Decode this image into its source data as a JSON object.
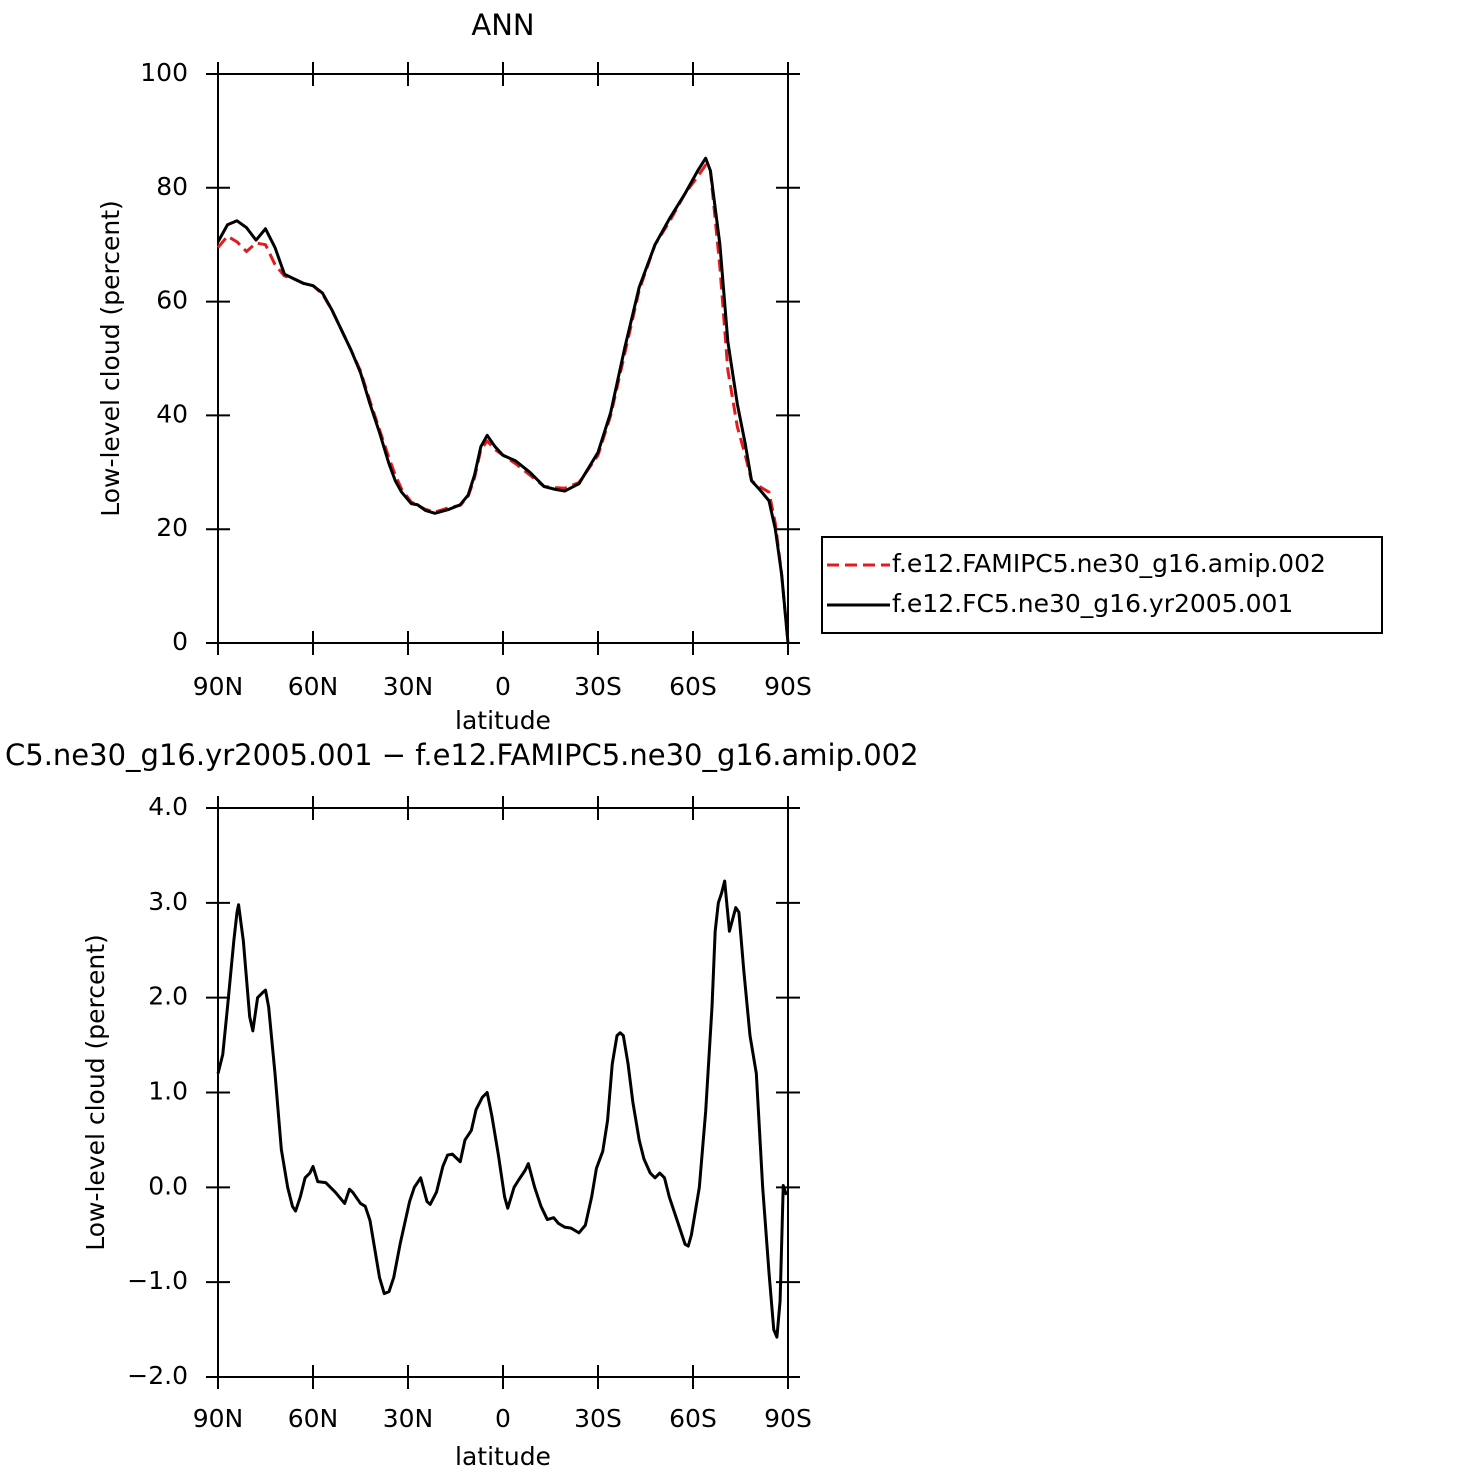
{
  "chart_data": [
    {
      "type": "line",
      "title": "ANN",
      "xlabel": "latitude",
      "ylabel": "Low-level cloud (percent)",
      "x": [
        90,
        87,
        84,
        81,
        78,
        75,
        72,
        69,
        66,
        63,
        60,
        57,
        54,
        51,
        48,
        45,
        42,
        39,
        36,
        34,
        32,
        29,
        27,
        24.5,
        21.5,
        17,
        13.5,
        11,
        9,
        7,
        5,
        2.5,
        0,
        -4,
        -8.5,
        -13,
        -16.5,
        -19.5,
        -24,
        -30,
        -34,
        -38.5,
        -43,
        -48,
        -52.5,
        -57.5,
        -61.5,
        -64,
        -65.5,
        -68.5,
        -71,
        -74,
        -76.5,
        -78.5,
        -81,
        -84,
        -86,
        -88,
        -90
      ],
      "series": [
        {
          "name": "f.e12.FAMIPC5.ne30_g16.amip.002",
          "color": "#e41a1c",
          "linestyle": "dashed",
          "values": [
            69.5,
            71.5,
            70.5,
            68.8,
            70.3,
            70,
            66.5,
            64.5,
            64,
            63.2,
            62.8,
            61.3,
            58.5,
            55,
            51.5,
            47.8,
            42.5,
            37.5,
            32.5,
            29.5,
            27,
            24.8,
            24.2,
            23.5,
            23,
            23.8,
            24.2,
            25.8,
            29,
            34,
            35.5,
            34,
            33,
            31.5,
            29.5,
            27.5,
            27.3,
            27.2,
            28.2,
            33,
            40,
            51,
            62,
            70,
            74,
            79,
            82,
            84,
            83,
            66,
            48,
            38,
            33,
            28.5,
            27.5,
            26.5,
            21,
            12,
            0
          ]
        },
        {
          "name": "f.e12.FC5.ne30_g16.yr2005.001",
          "color": "#000000",
          "linestyle": "solid",
          "values": [
            70.5,
            73.5,
            74.2,
            73,
            70.8,
            72.8,
            69.5,
            64.8,
            64,
            63.2,
            62.8,
            61.5,
            58.5,
            55,
            51.5,
            47.5,
            42,
            37,
            31.5,
            28.5,
            26.5,
            24.5,
            24.3,
            23.3,
            22.8,
            23.5,
            24.3,
            26,
            29.5,
            34.5,
            36.5,
            34.5,
            33,
            32,
            30,
            27.5,
            27,
            26.7,
            28,
            33.5,
            40.5,
            52,
            62.5,
            70,
            74.5,
            79,
            83,
            85.2,
            83,
            70,
            53,
            42,
            35,
            28.5,
            27,
            25,
            20,
            12,
            0
          ]
        }
      ],
      "xlim": [
        90,
        -90
      ],
      "xticks": [
        {
          "value": 90,
          "label": "90N"
        },
        {
          "value": 60,
          "label": "60N"
        },
        {
          "value": 30,
          "label": "30N"
        },
        0,
        {
          "value": -30,
          "label": "30S"
        },
        {
          "value": -60,
          "label": "60S"
        },
        {
          "value": -90,
          "label": "90S"
        }
      ],
      "ylim": [
        0,
        100
      ],
      "yticks": [
        0,
        20,
        40,
        60,
        80,
        100
      ],
      "legend": "right"
    },
    {
      "type": "line",
      "title": "C5.ne30_g16.yr2005.001 − f.e12.FAMIPC5.ne30_g16.amip.002",
      "xlabel": "latitude",
      "ylabel": "Low-level cloud (percent)",
      "x": [
        90,
        88.5,
        87,
        85,
        84,
        83.5,
        82,
        80,
        79,
        77.5,
        76,
        75,
        74,
        72,
        70,
        68,
        66.5,
        65.5,
        64,
        62.5,
        61,
        60,
        58.5,
        56,
        53,
        50,
        48.5,
        47.5,
        45,
        43.5,
        42,
        39,
        37.5,
        36,
        34.5,
        32.5,
        29.5,
        28,
        26,
        24,
        23,
        21,
        19,
        17.5,
        16,
        13.5,
        12,
        10,
        8.5,
        6.5,
        5,
        3.5,
        1.5,
        -0.5,
        -1.5,
        -3.5,
        -5,
        -7,
        -8,
        -10,
        -12,
        -14,
        -16,
        -17.5,
        -19.5,
        -21.5,
        -24,
        -26,
        -28,
        -29.5,
        -31.5,
        -33,
        -34.5,
        -36,
        -37,
        -38,
        -39.5,
        -41,
        -43,
        -44.5,
        -46.5,
        -48,
        -49.5,
        -51,
        -52.5,
        -55,
        -57.5,
        -58.5,
        -59.5,
        -62,
        -64,
        -66,
        -67,
        -68,
        -69,
        -70,
        -71.5,
        -73.5,
        -74.5,
        -76,
        -78,
        -80,
        -82,
        -84,
        -85.5,
        -86.5,
        -87.5,
        -88.5,
        -89.5
      ],
      "series": [
        {
          "color": "#000000",
          "linestyle": "solid",
          "values": [
            1.2,
            1.4,
            1.9,
            2.6,
            2.9,
            2.98,
            2.6,
            1.8,
            1.65,
            2.0,
            2.05,
            2.08,
            1.9,
            1.2,
            0.4,
            0.0,
            -0.2,
            -0.25,
            -0.1,
            0.1,
            0.15,
            0.22,
            0.06,
            0.05,
            -0.05,
            -0.17,
            -0.02,
            -0.05,
            -0.17,
            -0.2,
            -0.35,
            -0.95,
            -1.12,
            -1.1,
            -0.95,
            -0.6,
            -0.15,
            0.0,
            0.1,
            -0.15,
            -0.18,
            -0.05,
            0.22,
            0.34,
            0.35,
            0.27,
            0.5,
            0.6,
            0.82,
            0.95,
            1.0,
            0.75,
            0.35,
            -0.1,
            -0.22,
            0.0,
            0.08,
            0.18,
            0.25,
            0.0,
            -0.2,
            -0.34,
            -0.32,
            -0.38,
            -0.42,
            -0.43,
            -0.48,
            -0.4,
            -0.1,
            0.2,
            0.38,
            0.7,
            1.3,
            1.6,
            1.63,
            1.6,
            1.3,
            0.9,
            0.5,
            0.3,
            0.15,
            0.1,
            0.15,
            0.1,
            -0.1,
            -0.35,
            -0.6,
            -0.62,
            -0.5,
            0.0,
            0.8,
            1.9,
            2.7,
            3.0,
            3.1,
            3.23,
            2.7,
            2.95,
            2.9,
            2.3,
            1.6,
            1.2,
            0.0,
            -0.9,
            -1.5,
            -1.58,
            -1.2,
            0.02,
            -0.08
          ]
        }
      ],
      "xlim": [
        90,
        -90
      ],
      "xticks": [
        {
          "value": 90,
          "label": "90N"
        },
        {
          "value": 60,
          "label": "60N"
        },
        {
          "value": 30,
          "label": "30N"
        },
        0,
        {
          "value": -30,
          "label": "30S"
        },
        {
          "value": -60,
          "label": "60S"
        },
        {
          "value": -90,
          "label": "90S"
        }
      ],
      "ylim": [
        -2,
        4
      ],
      "yticks": [
        {
          "value": -2,
          "label": "−2.0"
        },
        {
          "value": -1,
          "label": "−1.0"
        },
        {
          "value": 0,
          "label": "0.0"
        },
        {
          "value": 1,
          "label": "1.0"
        },
        {
          "value": 2,
          "label": "2.0"
        },
        {
          "value": 3,
          "label": "3.0"
        },
        {
          "value": 4,
          "label": "4.0"
        }
      ]
    }
  ]
}
